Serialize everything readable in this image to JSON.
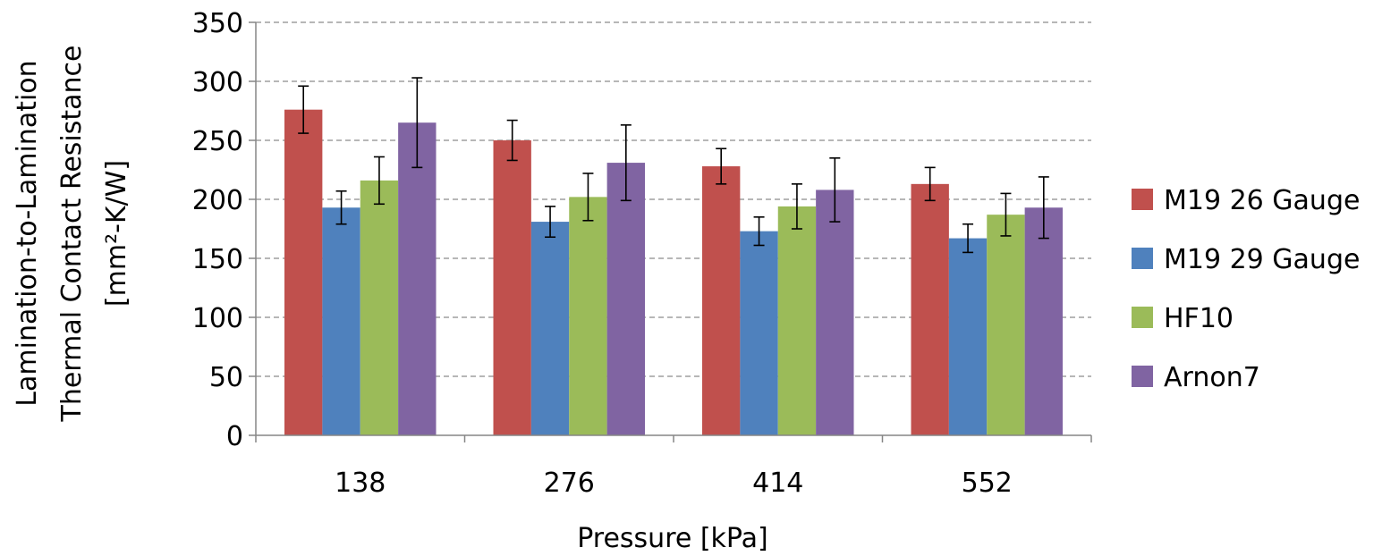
{
  "chart_data": {
    "type": "bar",
    "title": "",
    "xlabel": "Pressure [kPa]",
    "ylabel_lines": [
      "Lamination-to-Lamination",
      "Thermal Contact Resistance",
      "[mm²-K/W]"
    ],
    "categories": [
      "138",
      "276",
      "414",
      "552"
    ],
    "ylim": [
      0,
      350
    ],
    "yticks": [
      "0",
      "50",
      "100",
      "150",
      "200",
      "250",
      "300",
      "350"
    ],
    "grid": "horizontal dashed",
    "legend_position": "right",
    "series": [
      {
        "name": "M19 26 Gauge",
        "color": "#C0504D",
        "values": [
          276,
          250,
          228,
          213
        ],
        "errors": [
          20,
          17,
          15,
          14
        ]
      },
      {
        "name": "M19 29 Gauge",
        "color": "#4F81BD",
        "values": [
          193,
          181,
          173,
          167
        ],
        "errors": [
          14,
          13,
          12,
          12
        ]
      },
      {
        "name": "HF10",
        "color": "#9BBB59",
        "values": [
          216,
          202,
          194,
          187
        ],
        "errors": [
          20,
          20,
          19,
          18
        ]
      },
      {
        "name": "Arnon7",
        "color": "#8064A2",
        "values": [
          265,
          231,
          208,
          193
        ],
        "errors": [
          38,
          32,
          27,
          26
        ]
      }
    ]
  }
}
